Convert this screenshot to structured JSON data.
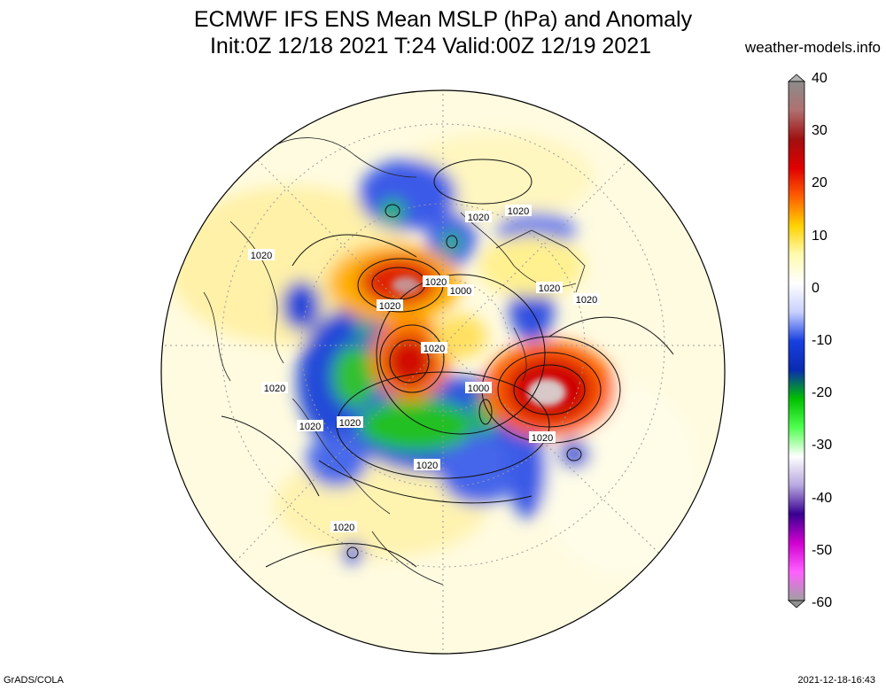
{
  "header": {
    "title_line1": "ECMWF IFS ENS Mean MSLP (hPa) and Anomaly",
    "title_line2": "Init:0Z 12/18 2021  T:24 Valid:00Z 12/19 2021",
    "site": "weather-models.info"
  },
  "footer": {
    "credit": "GrADS/COLA",
    "timestamp": "2021-12-18-16:43"
  },
  "colorbar": {
    "ticks": [
      "40",
      "30",
      "20",
      "10",
      "0",
      "-10",
      "-20",
      "-30",
      "-40",
      "-50",
      "-60"
    ],
    "stops": [
      "#8c8c8c",
      "#b07070",
      "#a01010",
      "#e00000",
      "#ff6000",
      "#ffd200",
      "#fffab0",
      "#ffffff",
      "#c8d0ff",
      "#1840e0",
      "#0a2ab0",
      "#00c000",
      "#50ff50",
      "#ffffff",
      "#b8a8e0",
      "#380090",
      "#d000d0",
      "#ff60ff",
      "#a0a0a0"
    ]
  },
  "map": {
    "projection": "north polar stereographic",
    "isobar_labels": [
      "1020",
      "1020",
      "1020",
      "1000",
      "1020",
      "1020",
      "1020",
      "1020",
      "1020",
      "1000",
      "1020",
      "1020",
      "1020",
      "1020",
      "1020",
      "1020"
    ]
  }
}
